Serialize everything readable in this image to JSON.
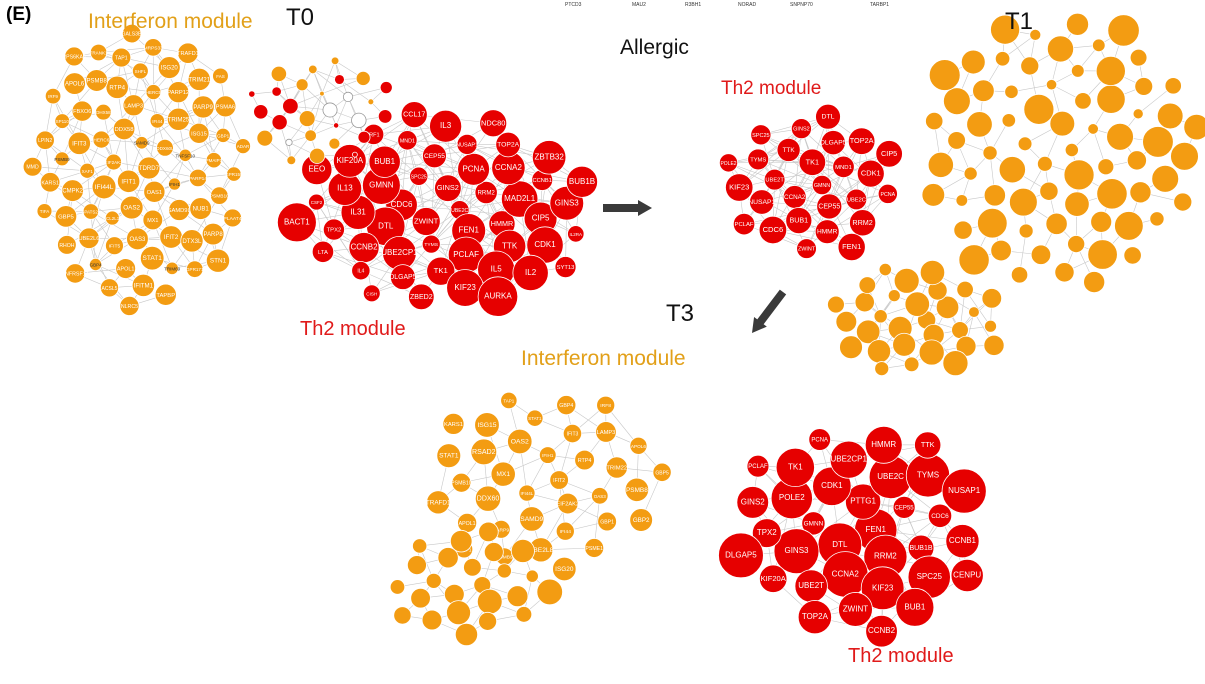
{
  "panel_label": "(E)",
  "timepoints": {
    "t0": "T0",
    "t1": "T1",
    "t3": "T3"
  },
  "condition": "Allergic",
  "modules": {
    "interferon": "Interferon module",
    "th2": "Th2 module"
  },
  "colors": {
    "interferon": "#f39c12",
    "th2": "#e60000",
    "other": "#ffffff",
    "arrow": "#3a3a3a",
    "edge": "#c8c8c8"
  },
  "top_labels": [
    "PTCD3",
    "MAU2",
    "R3BH1",
    "NORAD",
    "SNPNP70",
    "TARBP1"
  ],
  "networks": {
    "t0_interferon": [
      "TDRD7",
      "IFIT1",
      "SAMD9",
      "OAS1",
      "EIF2AK2",
      "DDX60L",
      "OAS2",
      "DDX58",
      "IFIH1",
      "IFI44L",
      "IFI44",
      "MX1",
      "HERC6",
      "TNFSF10",
      "BCL2L14",
      "LAMP3",
      "SAMD9L",
      "XAF1",
      "TRIM25",
      "OAS3",
      "DHX58",
      "PARP14",
      "SPATS2L",
      "HERC5",
      "IFIT2",
      "IFIT3",
      "ISG15",
      "IFIT5",
      "RTP4",
      "NUB1",
      "CMPK2",
      "PARP12",
      "STAT1",
      "FBXO6",
      "PMAIP1",
      "UBE2L6",
      "SHFL",
      "DTX3L",
      "PSMB9",
      "PARP9",
      "APOL1",
      "PSMB8",
      "PSMB10",
      "GBP5",
      "ISG20",
      "TRIM69",
      "SP110",
      "GBP1",
      "GBP4",
      "TAP1",
      "PARP8",
      "KARS1",
      "TRIM21",
      "IFITM1",
      "APOL6",
      "GPR155",
      "RHOH",
      "MRPS33",
      "GPR171",
      "LPIN2",
      "PSMA6",
      "ACSL5",
      "TRANK1",
      "PLAAT4",
      "TIFA",
      "TRAFD1",
      "TAPBP",
      "IRF9",
      "ADAR",
      "TNFRSF14",
      "LGALS3BP",
      "STN1",
      "MMD",
      "FAS",
      "NLRC5",
      "RPS6KA5"
    ],
    "t0_th2": [
      "UBE2C",
      "ZWINT",
      "GINS2",
      "FEN1",
      "CDC6",
      "RRM2",
      "TYMS",
      "SPC25",
      "HMMR",
      "DTL",
      "PCNA",
      "PCLAF",
      "GMNN",
      "MAD2L1",
      "UBE2CP1",
      "CEP55",
      "TTK",
      "IL31",
      "CCNA2",
      "TK1",
      "BUB1",
      "CIP5",
      "CCNB2",
      "NUSAP1",
      "IL5",
      "IL13",
      "CCNB1",
      "DLGAP5",
      "MND1",
      "CDK1",
      "TPX2",
      "TOP2A",
      "KIF23",
      "KIF20A",
      "GINS3",
      "IL4",
      "IL3",
      "IL2",
      "CSF2",
      "ZBTB32",
      "ZBED2",
      "IRF1",
      "IL2RA",
      "LTA",
      "NDC80",
      "AURKA",
      "EEO",
      "BUB1B",
      "CISH",
      "CCL17",
      "SYT13",
      "BACT1"
    ],
    "t1_th2": [
      "GMNN",
      "CCNA2",
      "TK1",
      "CEP55",
      "UBE2T",
      "MND1",
      "BUB1",
      "TTK",
      "UBE2C",
      "NUSAP1",
      "DLGAP5",
      "HMMR",
      "TYMS",
      "CDK1",
      "CDC6",
      "GINS2",
      "RRM2",
      "KIF23",
      "TOP2A",
      "ZWINT",
      "SPC25",
      "PCNA",
      "PCLAF",
      "DTL",
      "FEN1",
      "POLE2",
      "CIP5"
    ],
    "t3_interferon": [
      "IFIT2",
      "IFI44L",
      "IFIH1",
      "EIF2AK2",
      "MX1",
      "RTP4",
      "SAMD9",
      "OAS2",
      "OAS3",
      "DDX60",
      "IFIT3",
      "IFI44",
      "RSAD2",
      "TRIM22",
      "PARP9",
      "STAT1",
      "GBP1",
      "PSMB10",
      "LAMP3",
      "UBE2L8",
      "ISG15",
      "PSMB8",
      "APOL1",
      "GBP4",
      "PSME1",
      "STAT1",
      "APOL6",
      "PSMB9",
      "TAP1",
      "GBP2",
      "TRAFD1",
      "IRF8",
      "ISG20",
      "KARS1",
      "GBP5",
      "PLPP1"
    ],
    "t3_th2": [
      "FEN1",
      "DTL",
      "PTTG1",
      "RRM2",
      "GMNN",
      "CEP55",
      "CCNA2",
      "CDK1",
      "BUB1B",
      "GINS3",
      "UBE2C",
      "KIF23",
      "POLE2",
      "CDC6",
      "UBE2T",
      "UBE2CP1",
      "SPC25",
      "TPX2",
      "TYMS",
      "ZWINT",
      "TK1",
      "CCNB1",
      "KIF20A",
      "HMMR",
      "BUB1",
      "GINS2",
      "NUSAP1",
      "TOP2A",
      "PCNA",
      "CENPU",
      "DLGAP5",
      "TTK",
      "CCNB2",
      "PCLAF"
    ]
  },
  "diagram": {
    "description_nodes": "nodes listed in networks"
  }
}
